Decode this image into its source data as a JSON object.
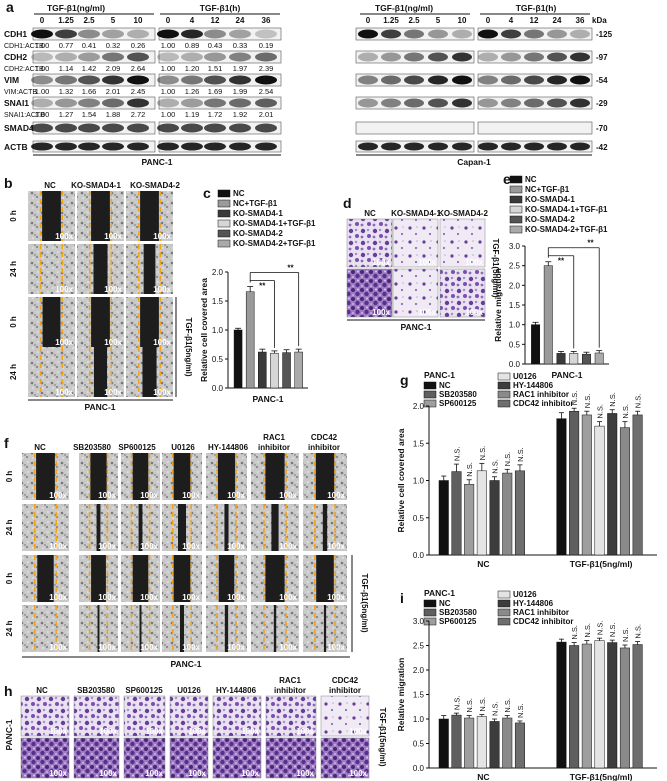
{
  "panel_a": {
    "letter": "a",
    "left": {
      "header1": "TGF-β1(ng/ml)",
      "header2": "TGF-β1(h)",
      "doses": [
        "0",
        "1.25",
        "2.5",
        "5",
        "10"
      ],
      "times": [
        "0",
        "4",
        "12",
        "24",
        "36"
      ],
      "rows": [
        {
          "name": "CDH1",
          "ratio_label": "CDH1:ACTB",
          "ratios1": [
            "1.00",
            "0.77",
            "0.41",
            "0.32",
            "0.26"
          ],
          "ratios2": [
            "1.00",
            "0.89",
            "0.43",
            "0.33",
            "0.19"
          ]
        },
        {
          "name": "CDH2",
          "ratio_label": "CDH2:ACTB",
          "ratios1": [
            "1.00",
            "1.14",
            "1.42",
            "2.09",
            "2.64"
          ],
          "ratios2": [
            "1.00",
            "1.20",
            "1.51",
            "1.97",
            "2.39"
          ]
        },
        {
          "name": "VIM",
          "ratio_label": "VIM:ACTB",
          "ratios1": [
            "1.00",
            "1.32",
            "1.66",
            "2.01",
            "2.45"
          ],
          "ratios2": [
            "1.00",
            "1.26",
            "1.69",
            "1.99",
            "2.54"
          ]
        },
        {
          "name": "SNAI1",
          "ratio_label": "SNAI1:ACTB",
          "ratios1": [
            "1.00",
            "1.27",
            "1.54",
            "1.88",
            "2.72"
          ],
          "ratios2": [
            "1.00",
            "1.19",
            "1.72",
            "1.92",
            "2.01"
          ]
        },
        {
          "name": "SMAD4",
          "ratio_label": "",
          "ratios1": [],
          "ratios2": []
        },
        {
          "name": "ACTB",
          "ratio_label": "",
          "ratios1": [],
          "ratios2": []
        }
      ],
      "cell_line": "PANC-1"
    },
    "right": {
      "header1": "TGF-β1(ng/ml)",
      "header2": "TGF-β1(h)",
      "doses": [
        "0",
        "1.25",
        "2.5",
        "5",
        "10"
      ],
      "times": [
        "0",
        "4",
        "12",
        "24",
        "36"
      ],
      "unit": "kDa",
      "kda": [
        "-125",
        "-97",
        "-54",
        "-29",
        "-70",
        "-42"
      ],
      "cell_line": "Capan-1"
    }
  },
  "panel_b": {
    "letter": "b",
    "cols": [
      "NC",
      "KO-SMAD4-1",
      "KO-SMAD4-2"
    ],
    "rows": [
      "0 h",
      "24 h",
      "0 h",
      "24 h"
    ],
    "mag": "100x",
    "side": "TGF-β1(5ng/ml)",
    "cell_line": "PANC-1"
  },
  "panel_c": {
    "letter": "c",
    "legend": [
      "NC",
      "NC+TGF-β1",
      "KO-SMAD4-1",
      "KO-SMAD4-1+TGF-β1",
      "KO-SMAD4-2",
      "KO-SMAD4-2+TGF-β1"
    ],
    "ylabel": "Relative cell covered area",
    "yticks": [
      "0.0",
      "0.5",
      "1.0",
      "1.5",
      "2.0"
    ],
    "xlabel": "PANC-1",
    "sig": [
      "**",
      "**"
    ]
  },
  "panel_d": {
    "letter": "d",
    "cols": [
      "NC",
      "KO-SMAD4-1",
      "KO-SMAD4-2"
    ],
    "mag": "100x",
    "side": "TGF-β1(5ng/ml)",
    "cell_line": "PANC-1"
  },
  "panel_e": {
    "letter": "e",
    "legend": [
      "NC",
      "NC+TGF-β1",
      "KO-SMAD4-1",
      "KO-SMAD4-1+TGF-β1",
      "KO-SMAD4-2",
      "KO-SMAD4-2+TGF-β1"
    ],
    "ylabel": "Relative migration",
    "yticks": [
      "0.0",
      "0.5",
      "1.0",
      "1.5",
      "2.0",
      "2.5",
      "3.0"
    ],
    "xlabel": "PANC-1",
    "sig": [
      "**",
      "**"
    ]
  },
  "panel_f": {
    "letter": "f",
    "cols": [
      "NC",
      "SB203580",
      "SP600125",
      "U0126",
      "HY-144806",
      "RAC1\ninhibitor",
      "CDC42\ninhibitor"
    ],
    "rows": [
      "0 h",
      "24 h",
      "0 h",
      "24 h"
    ],
    "mag": "100x",
    "side": "TGF-β1(5ng/ml)",
    "cell_line": "PANC-1"
  },
  "panel_g": {
    "letter": "g",
    "title": "PANC-1",
    "legend": [
      "NC",
      "SB203580",
      "SP600125",
      "U0126",
      "HY-144806",
      "RAC1 inhibitor",
      "CDC42 inhibitor"
    ],
    "ylabel": "Relative cell covered area",
    "yticks": [
      "0.0",
      "0.5",
      "1.0",
      "1.5",
      "2.0"
    ],
    "groups": [
      "NC",
      "TGF-β1(5ng/ml)"
    ],
    "ns": "N.S."
  },
  "panel_h": {
    "letter": "h",
    "cols": [
      "NC",
      "SB203580",
      "SP600125",
      "U0126",
      "HY-144806",
      "RAC1\ninhibitor",
      "CDC42\ninhibitor"
    ],
    "mag": "100x",
    "left": "PANC-1",
    "side": "TGF-β1(5ng/ml)"
  },
  "panel_i": {
    "letter": "i",
    "title": "PANC-1",
    "legend": [
      "NC",
      "SB203580",
      "SP600125",
      "U0126",
      "HY-144806",
      "RAC1 inhibitor",
      "CDC42 inhibitor"
    ],
    "ylabel": "Relative migration",
    "yticks": [
      "0.0",
      "0.5",
      "1.0",
      "1.5",
      "2.0",
      "2.5",
      "3.0"
    ],
    "groups": [
      "NC",
      "TGF-β1(5ng/ml)"
    ],
    "ns": "N.S."
  },
  "chart_data": [
    {
      "type": "bar",
      "panel": "c",
      "categories": [
        "NC",
        "NC+TGF-β1",
        "KO-SMAD4-1",
        "KO-SMAD4-1+TGF-β1",
        "KO-SMAD4-2",
        "KO-SMAD4-2+TGF-β1"
      ],
      "values": [
        1.0,
        1.66,
        0.62,
        0.6,
        0.61,
        0.62
      ],
      "errors": [
        0.03,
        0.09,
        0.05,
        0.04,
        0.05,
        0.05
      ],
      "ylabel": "Relative cell covered area",
      "xlabel": "PANC-1",
      "ylim": [
        0,
        2.0
      ],
      "colors": [
        "#111111",
        "#9a9a9a",
        "#3a3a3a",
        "#d6d6d6",
        "#555555",
        "#aaaaaa"
      ]
    },
    {
      "type": "bar",
      "panel": "e",
      "categories": [
        "NC",
        "NC+TGF-β1",
        "KO-SMAD4-1",
        "KO-SMAD4-1+TGF-β1",
        "KO-SMAD4-2",
        "KO-SMAD4-2+TGF-β1"
      ],
      "values": [
        1.0,
        2.5,
        0.27,
        0.27,
        0.25,
        0.28
      ],
      "errors": [
        0.06,
        0.1,
        0.05,
        0.05,
        0.05,
        0.06
      ],
      "ylabel": "Relative migration",
      "xlabel": "PANC-1",
      "ylim": [
        0,
        3.0
      ],
      "colors": [
        "#111111",
        "#9a9a9a",
        "#3a3a3a",
        "#d6d6d6",
        "#555555",
        "#aaaaaa"
      ]
    },
    {
      "type": "bar",
      "panel": "g",
      "categories": [
        "NC",
        "TGF-β1(5ng/ml)"
      ],
      "series": [
        {
          "name": "NC",
          "values": [
            1.0,
            1.83
          ],
          "errors": [
            0.06,
            0.08
          ]
        },
        {
          "name": "SB203580",
          "values": [
            1.12,
            1.93
          ],
          "errors": [
            0.1,
            0.04
          ]
        },
        {
          "name": "SP600125",
          "values": [
            0.95,
            1.88
          ],
          "errors": [
            0.06,
            0.05
          ]
        },
        {
          "name": "U0126",
          "values": [
            1.13,
            1.73
          ],
          "errors": [
            0.1,
            0.06
          ]
        },
        {
          "name": "HY-144806",
          "values": [
            1.0,
            1.9
          ],
          "errors": [
            0.05,
            0.05
          ]
        },
        {
          "name": "RAC1 inhibitor",
          "values": [
            1.1,
            1.71
          ],
          "errors": [
            0.05,
            0.08
          ]
        },
        {
          "name": "CDC42 inhibitor",
          "values": [
            1.13,
            1.88
          ],
          "errors": [
            0.08,
            0.05
          ]
        }
      ],
      "ylabel": "Relative cell covered area",
      "ylim": [
        0,
        2.0
      ],
      "colors": [
        "#111111",
        "#5f5f5f",
        "#9e9e9e",
        "#e4e4e4",
        "#3d3d3d",
        "#8a8a8a",
        "#6e6e6e"
      ]
    },
    {
      "type": "bar",
      "panel": "i",
      "categories": [
        "NC",
        "TGF-β1(5ng/ml)"
      ],
      "series": [
        {
          "name": "NC",
          "values": [
            1.0,
            2.57
          ],
          "errors": [
            0.07,
            0.06
          ]
        },
        {
          "name": "SB203580",
          "values": [
            1.08,
            2.5
          ],
          "errors": [
            0.04,
            0.06
          ]
        },
        {
          "name": "SP600125",
          "values": [
            1.02,
            2.53
          ],
          "errors": [
            0.05,
            0.07
          ]
        },
        {
          "name": "U0126",
          "values": [
            1.05,
            2.6
          ],
          "errors": [
            0.04,
            0.05
          ]
        },
        {
          "name": "HY-144806",
          "values": [
            0.95,
            2.56
          ],
          "errors": [
            0.05,
            0.05
          ]
        },
        {
          "name": "RAC1 inhibitor",
          "values": [
            1.02,
            2.45
          ],
          "errors": [
            0.05,
            0.06
          ]
        },
        {
          "name": "CDC42 inhibitor",
          "values": [
            0.92,
            2.52
          ],
          "errors": [
            0.04,
            0.06
          ]
        }
      ],
      "ylabel": "Relative migration",
      "ylim": [
        0,
        3.0
      ],
      "colors": [
        "#111111",
        "#5f5f5f",
        "#9e9e9e",
        "#e4e4e4",
        "#3d3d3d",
        "#8a8a8a",
        "#6e6e6e"
      ]
    }
  ]
}
